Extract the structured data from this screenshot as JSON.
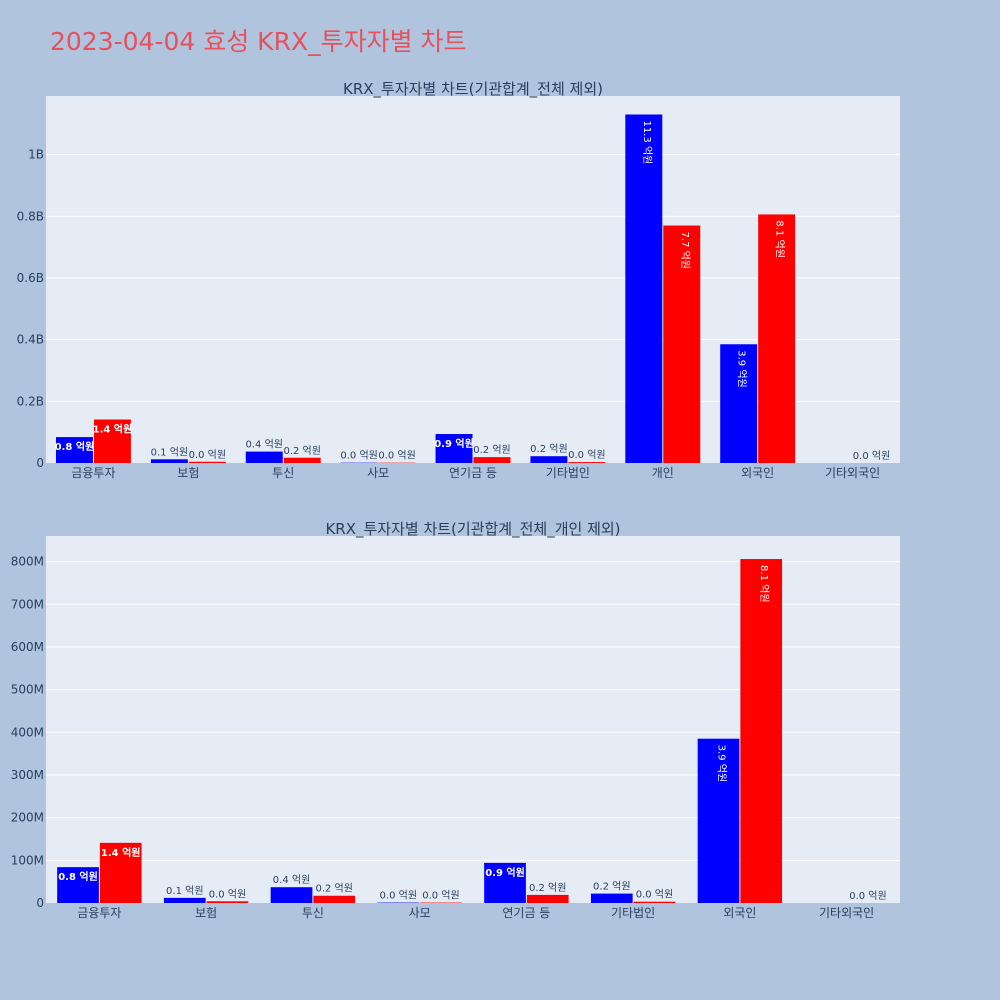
{
  "title": "2023-04-04 효성 KRX_투자자별 차트",
  "colors": {
    "background": "#b0c4de",
    "plot_bg": "#e5ecf6",
    "title": "#e8505b",
    "series_a": "#0000ff",
    "series_b": "#ff0000"
  },
  "chart_data": [
    {
      "type": "bar",
      "title": "KRX_투자자별 차트(기관합계_전체 제외)",
      "categories": [
        "금융투자",
        "보험",
        "투신",
        "사모",
        "연기금 등",
        "기타법인",
        "개인",
        "외국인",
        "기타외국인"
      ],
      "series": [
        {
          "color": "#0000ff",
          "values": [
            84000000,
            12000000,
            37000000,
            1000000,
            94000000,
            22000000,
            1130000000,
            385000000,
            0
          ],
          "labels": [
            "0.8 억원",
            "0.1 억원",
            "0.4 억원",
            "0.0 억원",
            "0.9 억원",
            "0.2 억원",
            "11.3 억원",
            "3.9 억원",
            ""
          ]
        },
        {
          "color": "#ff0000",
          "values": [
            141000000,
            4000000,
            17000000,
            1000000,
            19000000,
            3000000,
            770000000,
            806000000,
            0
          ],
          "labels": [
            "1.4 억원",
            "0.0 억원",
            "0.2 억원",
            "0.0 억원",
            "0.2 억원",
            "0.0 억원",
            "7.7 억원",
            "8.1 억원",
            "0.0 억원"
          ]
        }
      ],
      "yticks": [
        0,
        200000000,
        400000000,
        600000000,
        800000000,
        1000000000
      ],
      "ytick_labels": [
        "0",
        "0.2B",
        "0.4B",
        "0.6B",
        "0.8B",
        "1B"
      ],
      "ylim": [
        0,
        1190000000
      ],
      "grid": true
    },
    {
      "type": "bar",
      "title": "KRX_투자자별 차트(기관합계_전체_개인 제외)",
      "categories": [
        "금융투자",
        "보험",
        "투신",
        "사모",
        "연기금 등",
        "기타법인",
        "외국인",
        "기타외국인"
      ],
      "series": [
        {
          "color": "#0000ff",
          "values": [
            84000000,
            12000000,
            37000000,
            1000000,
            94000000,
            22000000,
            385000000,
            0
          ],
          "labels": [
            "0.8 억원",
            "0.1 억원",
            "0.4 억원",
            "0.0 억원",
            "0.9 억원",
            "0.2 억원",
            "3.9 억원",
            ""
          ]
        },
        {
          "color": "#ff0000",
          "values": [
            141000000,
            4000000,
            17000000,
            1000000,
            19000000,
            3000000,
            806000000,
            0
          ],
          "labels": [
            "1.4 억원",
            "0.0 억원",
            "0.2 억원",
            "0.0 억원",
            "0.2 억원",
            "0.0 억원",
            "8.1 억원",
            "0.0 억원"
          ]
        }
      ],
      "yticks": [
        0,
        100000000,
        200000000,
        300000000,
        400000000,
        500000000,
        600000000,
        700000000,
        800000000
      ],
      "ytick_labels": [
        "0",
        "100M",
        "200M",
        "300M",
        "400M",
        "500M",
        "600M",
        "700M",
        "800M"
      ],
      "ylim": [
        0,
        860000000
      ],
      "grid": true
    }
  ]
}
